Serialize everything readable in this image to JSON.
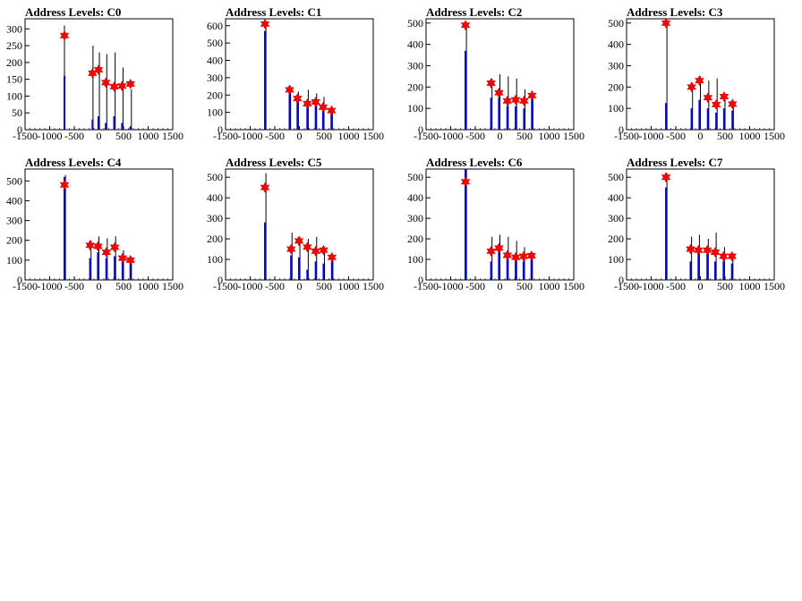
{
  "chart_data": [
    {
      "type": "bar",
      "title": "Address Levels: C0",
      "xlim": [
        -1500,
        1500
      ],
      "ylim": [
        0,
        330
      ],
      "x_ticks": [
        "-1500",
        "-1000",
        "-500",
        "0",
        "500",
        "1000",
        "1500"
      ],
      "y_ticks": [
        "0",
        "50",
        "100",
        "150",
        "200",
        "250",
        "300"
      ],
      "peaks": [
        {
          "x": -700,
          "y": 280
        },
        {
          "x": -130,
          "y": 168
        },
        {
          "x": -10,
          "y": 178
        },
        {
          "x": 140,
          "y": 140
        },
        {
          "x": 310,
          "y": 128
        },
        {
          "x": 470,
          "y": 130
        },
        {
          "x": 640,
          "y": 136
        }
      ],
      "bars": [
        {
          "x": -700,
          "y": 160
        },
        {
          "x": -130,
          "y": 30
        },
        {
          "x": -10,
          "y": 40
        },
        {
          "x": 140,
          "y": 20
        },
        {
          "x": 310,
          "y": 40
        },
        {
          "x": 470,
          "y": 20
        },
        {
          "x": 640,
          "y": 10
        }
      ],
      "black_lines": [
        {
          "x": -700,
          "y": 310
        },
        {
          "x": -120,
          "y": 250
        },
        {
          "x": 10,
          "y": 230
        },
        {
          "x": 160,
          "y": 225
        },
        {
          "x": 330,
          "y": 230
        },
        {
          "x": 490,
          "y": 185
        },
        {
          "x": 660,
          "y": 120
        }
      ]
    },
    {
      "type": "bar",
      "title": "Address Levels: C1",
      "xlim": [
        -1500,
        1500
      ],
      "ylim": [
        0,
        640
      ],
      "x_ticks": [
        "-1500",
        "-1000",
        "-500",
        "0",
        "500",
        "1000",
        "1500"
      ],
      "y_ticks": [
        "0",
        "100",
        "200",
        "300",
        "400",
        "500",
        "600"
      ],
      "peaks": [
        {
          "x": -700,
          "y": 610
        },
        {
          "x": -200,
          "y": 230
        },
        {
          "x": -40,
          "y": 180
        },
        {
          "x": 160,
          "y": 150
        },
        {
          "x": 330,
          "y": 160
        },
        {
          "x": 480,
          "y": 130
        },
        {
          "x": 650,
          "y": 110
        }
      ],
      "bars": [
        {
          "x": -700,
          "y": 570
        },
        {
          "x": -200,
          "y": 210
        },
        {
          "x": -40,
          "y": 170
        },
        {
          "x": 160,
          "y": 150
        },
        {
          "x": 330,
          "y": 140
        },
        {
          "x": 480,
          "y": 120
        },
        {
          "x": 650,
          "y": 100
        }
      ],
      "black_lines": [
        {
          "x": -680,
          "y": 620
        },
        {
          "x": -180,
          "y": 250
        },
        {
          "x": -20,
          "y": 220
        },
        {
          "x": 180,
          "y": 230
        },
        {
          "x": 350,
          "y": 210
        },
        {
          "x": 500,
          "y": 190
        },
        {
          "x": 670,
          "y": 130
        }
      ]
    },
    {
      "type": "bar",
      "title": "Address Levels: C2",
      "xlim": [
        -1500,
        1500
      ],
      "ylim": [
        0,
        520
      ],
      "x_ticks": [
        "-1500",
        "-1000",
        "-500",
        "0",
        "500",
        "1000",
        "1500"
      ],
      "y_ticks": [
        "0",
        "100",
        "200",
        "300",
        "400",
        "500"
      ],
      "peaks": [
        {
          "x": -700,
          "y": 490
        },
        {
          "x": -180,
          "y": 218
        },
        {
          "x": -20,
          "y": 173
        },
        {
          "x": 150,
          "y": 135
        },
        {
          "x": 320,
          "y": 140
        },
        {
          "x": 490,
          "y": 135
        },
        {
          "x": 650,
          "y": 160
        }
      ],
      "bars": [
        {
          "x": -700,
          "y": 370
        },
        {
          "x": -180,
          "y": 150
        },
        {
          "x": -20,
          "y": 150
        },
        {
          "x": 150,
          "y": 110
        },
        {
          "x": 320,
          "y": 110
        },
        {
          "x": 490,
          "y": 100
        },
        {
          "x": 650,
          "y": 150
        }
      ],
      "black_lines": [
        {
          "x": -680,
          "y": 500
        },
        {
          "x": -160,
          "y": 240
        },
        {
          "x": 0,
          "y": 260
        },
        {
          "x": 170,
          "y": 250
        },
        {
          "x": 340,
          "y": 240
        },
        {
          "x": 510,
          "y": 190
        },
        {
          "x": 670,
          "y": 170
        }
      ]
    },
    {
      "type": "bar",
      "title": "Address Levels: C3",
      "xlim": [
        -1500,
        1500
      ],
      "ylim": [
        0,
        520
      ],
      "x_ticks": [
        "-1500",
        "-1000",
        "-500",
        "0",
        "500",
        "1000",
        "1500"
      ],
      "y_ticks": [
        "0",
        "100",
        "200",
        "300",
        "400",
        "500"
      ],
      "peaks": [
        {
          "x": -700,
          "y": 500
        },
        {
          "x": -180,
          "y": 200
        },
        {
          "x": -20,
          "y": 230
        },
        {
          "x": 150,
          "y": 150
        },
        {
          "x": 320,
          "y": 118
        },
        {
          "x": 480,
          "y": 155
        },
        {
          "x": 650,
          "y": 120
        }
      ],
      "bars": [
        {
          "x": -700,
          "y": 125
        },
        {
          "x": -180,
          "y": 100
        },
        {
          "x": -20,
          "y": 140
        },
        {
          "x": 150,
          "y": 100
        },
        {
          "x": 320,
          "y": 80
        },
        {
          "x": 480,
          "y": 100
        },
        {
          "x": 650,
          "y": 90
        }
      ],
      "black_lines": [
        {
          "x": -680,
          "y": 510
        },
        {
          "x": -160,
          "y": 220
        },
        {
          "x": 0,
          "y": 250
        },
        {
          "x": 170,
          "y": 230
        },
        {
          "x": 340,
          "y": 240
        },
        {
          "x": 500,
          "y": 170
        },
        {
          "x": 670,
          "y": 130
        }
      ]
    },
    {
      "type": "bar",
      "title": "Address Levels: C4",
      "xlim": [
        -1500,
        1500
      ],
      "ylim": [
        0,
        560
      ],
      "x_ticks": [
        "-1500",
        "-1000",
        "-500",
        "0",
        "500",
        "1000",
        "1500"
      ],
      "y_ticks": [
        "0",
        "100",
        "200",
        "300",
        "400",
        "500"
      ],
      "peaks": [
        {
          "x": -700,
          "y": 480
        },
        {
          "x": -180,
          "y": 175
        },
        {
          "x": -20,
          "y": 170
        },
        {
          "x": 150,
          "y": 140
        },
        {
          "x": 320,
          "y": 165
        },
        {
          "x": 480,
          "y": 110
        },
        {
          "x": 640,
          "y": 100
        }
      ],
      "bars": [
        {
          "x": -700,
          "y": 520
        },
        {
          "x": -180,
          "y": 110
        },
        {
          "x": -20,
          "y": 140
        },
        {
          "x": 150,
          "y": 110
        },
        {
          "x": 320,
          "y": 120
        },
        {
          "x": 480,
          "y": 90
        },
        {
          "x": 640,
          "y": 80
        }
      ],
      "black_lines": [
        {
          "x": -680,
          "y": 530
        },
        {
          "x": -160,
          "y": 200
        },
        {
          "x": 0,
          "y": 220
        },
        {
          "x": 170,
          "y": 210
        },
        {
          "x": 340,
          "y": 220
        },
        {
          "x": 500,
          "y": 150
        },
        {
          "x": 660,
          "y": 110
        }
      ]
    },
    {
      "type": "bar",
      "title": "Address Levels: C5",
      "xlim": [
        -1500,
        1500
      ],
      "ylim": [
        0,
        540
      ],
      "x_ticks": [
        "-1500",
        "-1000",
        "-500",
        "0",
        "500",
        "1000",
        "1500"
      ],
      "y_ticks": [
        "0",
        "100",
        "200",
        "300",
        "400",
        "500"
      ],
      "peaks": [
        {
          "x": -700,
          "y": 450
        },
        {
          "x": -170,
          "y": 150
        },
        {
          "x": -10,
          "y": 190
        },
        {
          "x": 160,
          "y": 160
        },
        {
          "x": 330,
          "y": 140
        },
        {
          "x": 490,
          "y": 145
        },
        {
          "x": 660,
          "y": 110
        }
      ],
      "bars": [
        {
          "x": -700,
          "y": 280
        },
        {
          "x": -170,
          "y": 120
        },
        {
          "x": -10,
          "y": 110
        },
        {
          "x": 160,
          "y": 50
        },
        {
          "x": 330,
          "y": 90
        },
        {
          "x": 490,
          "y": 80
        },
        {
          "x": 660,
          "y": 90
        }
      ],
      "black_lines": [
        {
          "x": -680,
          "y": 520
        },
        {
          "x": -150,
          "y": 230
        },
        {
          "x": 10,
          "y": 210
        },
        {
          "x": 180,
          "y": 200
        },
        {
          "x": 350,
          "y": 210
        },
        {
          "x": 510,
          "y": 160
        },
        {
          "x": 680,
          "y": 120
        }
      ]
    },
    {
      "type": "bar",
      "title": "Address Levels: C6",
      "xlim": [
        -1500,
        1500
      ],
      "ylim": [
        0,
        540
      ],
      "x_ticks": [
        "-1500",
        "-1000",
        "-500",
        "0",
        "500",
        "1000",
        "1500"
      ],
      "y_ticks": [
        "0",
        "100",
        "200",
        "300",
        "400",
        "500"
      ],
      "peaks": [
        {
          "x": -700,
          "y": 478
        },
        {
          "x": -180,
          "y": 140
        },
        {
          "x": -20,
          "y": 155
        },
        {
          "x": 150,
          "y": 120
        },
        {
          "x": 320,
          "y": 110
        },
        {
          "x": 480,
          "y": 115
        },
        {
          "x": 640,
          "y": 118
        }
      ],
      "bars": [
        {
          "x": -700,
          "y": 560
        },
        {
          "x": -180,
          "y": 90
        },
        {
          "x": -20,
          "y": 140
        },
        {
          "x": 150,
          "y": 100
        },
        {
          "x": 320,
          "y": 100
        },
        {
          "x": 480,
          "y": 90
        },
        {
          "x": 640,
          "y": 100
        }
      ],
      "black_lines": [
        {
          "x": -680,
          "y": 540
        },
        {
          "x": -160,
          "y": 210
        },
        {
          "x": 0,
          "y": 220
        },
        {
          "x": 170,
          "y": 210
        },
        {
          "x": 340,
          "y": 190
        },
        {
          "x": 500,
          "y": 160
        },
        {
          "x": 660,
          "y": 130
        }
      ]
    },
    {
      "type": "bar",
      "title": "Address Levels: C7",
      "xlim": [
        -1500,
        1500
      ],
      "ylim": [
        0,
        540
      ],
      "x_ticks": [
        "-1500",
        "-1000",
        "-500",
        "0",
        "500",
        "1000",
        "1500"
      ],
      "y_ticks": [
        "0",
        "100",
        "200",
        "300",
        "400",
        "500"
      ],
      "peaks": [
        {
          "x": -700,
          "y": 500
        },
        {
          "x": -200,
          "y": 150
        },
        {
          "x": -40,
          "y": 145
        },
        {
          "x": 140,
          "y": 145
        },
        {
          "x": 300,
          "y": 135
        },
        {
          "x": 470,
          "y": 115
        },
        {
          "x": 640,
          "y": 115
        }
      ],
      "bars": [
        {
          "x": -700,
          "y": 450
        },
        {
          "x": -200,
          "y": 90
        },
        {
          "x": -40,
          "y": 150
        },
        {
          "x": 140,
          "y": 130
        },
        {
          "x": 300,
          "y": 90
        },
        {
          "x": 470,
          "y": 90
        },
        {
          "x": 640,
          "y": 80
        }
      ],
      "black_lines": [
        {
          "x": -680,
          "y": 520
        },
        {
          "x": -180,
          "y": 210
        },
        {
          "x": -20,
          "y": 220
        },
        {
          "x": 160,
          "y": 200
        },
        {
          "x": 320,
          "y": 230
        },
        {
          "x": 490,
          "y": 160
        },
        {
          "x": 660,
          "y": 130
        }
      ]
    }
  ]
}
